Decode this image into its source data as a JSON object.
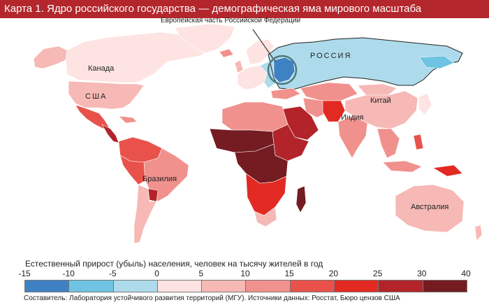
{
  "title": "Карта 1. Ядро российского государства — демографическая яма мирового масштаба",
  "callout": "Европейская часть Российской Федерации",
  "country_labels": {
    "russia": "РОССИЯ",
    "canada": "Канада",
    "usa": "США",
    "china": "Китай",
    "india": "Индия",
    "brazil": "Бразилия",
    "australia": "Австралия"
  },
  "legend": {
    "caption": "Естественный прирост (убыль) населения, человек на тысячу жителей в год",
    "ticks": [
      "-15",
      "-10",
      "-5",
      "0",
      "5",
      "10",
      "15",
      "20",
      "25",
      "30",
      "40"
    ],
    "colors": [
      "#3f82c4",
      "#6ec4e2",
      "#aedbeb",
      "#fde3e1",
      "#f6b9b6",
      "#f0918d",
      "#e8524b",
      "#e22a23",
      "#b2242a",
      "#741c22"
    ]
  },
  "source": "Составитель: Лаборатория устойчивого развития территорий (МГУ).   Источники данных: Росстат, Бюро цензов США"
}
